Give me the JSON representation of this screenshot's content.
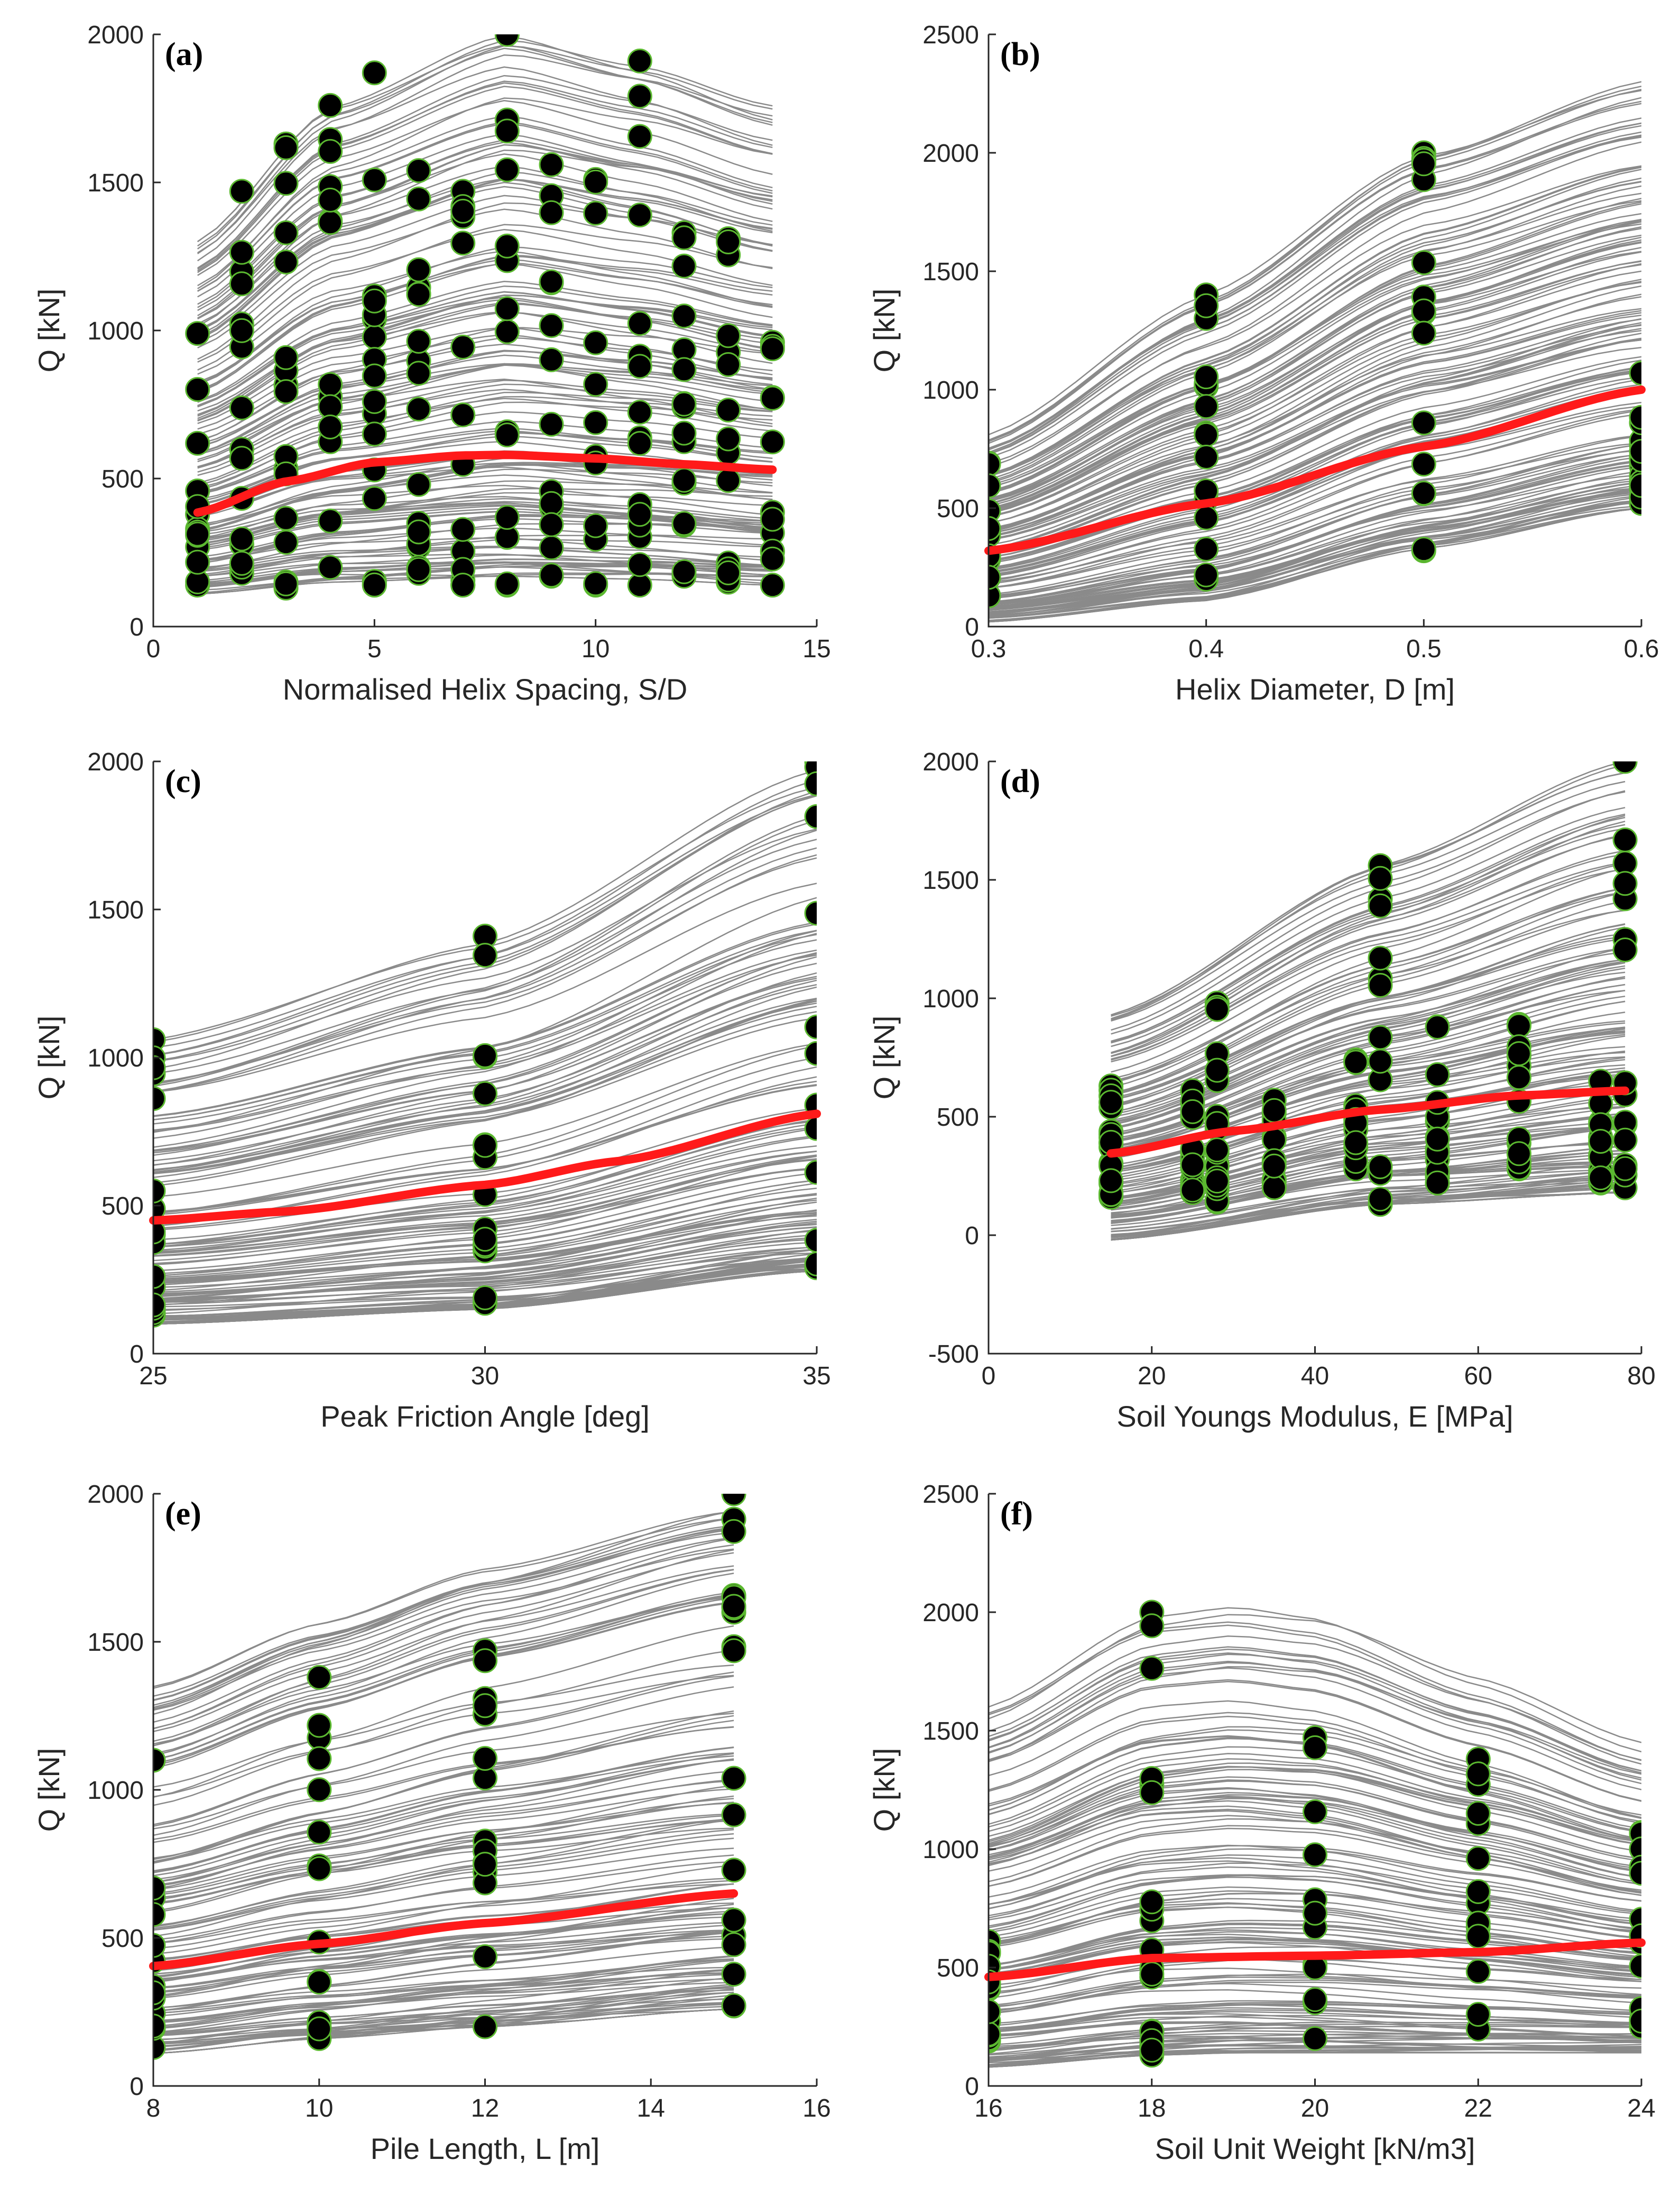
{
  "colors": {
    "curve": "#8a8a8a",
    "mean": "#ff1a1a",
    "point_fill": "#000000",
    "point_edge": "#5bb830"
  },
  "chart_data": [
    {
      "id": "a",
      "type": "scatter",
      "panel_label": "(a)",
      "xlabel": "Normalised Helix Spacing, S/D",
      "ylabel": "Q [kN]",
      "xlim": [
        0,
        15
      ],
      "ylim": [
        0,
        2000
      ],
      "xticks": [
        0,
        5,
        10,
        15
      ],
      "xtick_labels": [
        "0",
        "5",
        "10",
        "15"
      ],
      "yticks": [
        0,
        500,
        1000,
        1500,
        2000
      ],
      "ytick_labels": [
        "0",
        "500",
        "1000",
        "1500",
        "2000"
      ],
      "x_levels": [
        1,
        2,
        3,
        4,
        5,
        6,
        7,
        8,
        9,
        10,
        11,
        12,
        13,
        14
      ],
      "curve_range": [
        1,
        14
      ],
      "curve_envelope": {
        "x": [
          1,
          4,
          8,
          11,
          14
        ],
        "lower": [
          110,
          150,
          170,
          160,
          140
        ],
        "upper": [
          1300,
          1750,
          2000,
          1900,
          1760
        ]
      },
      "mean_curve": {
        "x": [
          1,
          3,
          5,
          7,
          8,
          10,
          12,
          14
        ],
        "y": [
          385,
          490,
          555,
          578,
          580,
          568,
          548,
          530
        ]
      },
      "points": [
        {
          "x": 1,
          "ymin": 140,
          "ymax": 990
        },
        {
          "x": 2,
          "ymin": 180,
          "ymax": 1470
        },
        {
          "x": 3,
          "ymin": 130,
          "ymax": 1630
        },
        {
          "x": 4,
          "ymin": 200,
          "ymax": 1760
        },
        {
          "x": 5,
          "ymin": 140,
          "ymax": 1870
        },
        {
          "x": 6,
          "ymin": 180,
          "ymax": 1540
        },
        {
          "x": 7,
          "ymin": 140,
          "ymax": 1470
        },
        {
          "x": 8,
          "ymin": 140,
          "ymax": 2000
        },
        {
          "x": 9,
          "ymin": 170,
          "ymax": 1560
        },
        {
          "x": 10,
          "ymin": 140,
          "ymax": 1510
        },
        {
          "x": 11,
          "ymin": 140,
          "ymax": 1910
        },
        {
          "x": 12,
          "ymin": 170,
          "ymax": 1330
        },
        {
          "x": 13,
          "ymin": 150,
          "ymax": 1310
        },
        {
          "x": 14,
          "ymin": 140,
          "ymax": 960
        }
      ]
    },
    {
      "id": "b",
      "type": "scatter",
      "panel_label": "(b)",
      "xlabel": "Helix Diameter, D [m]",
      "ylabel": "Q [kN]",
      "xlim": [
        0.3,
        0.6
      ],
      "ylim": [
        0,
        2500
      ],
      "xticks": [
        0.3,
        0.4,
        0.5,
        0.6
      ],
      "xtick_labels": [
        "0.3",
        "0.4",
        "0.5",
        "0.6"
      ],
      "yticks": [
        0,
        500,
        1000,
        1500,
        2000,
        2500
      ],
      "ytick_labels": [
        "0",
        "500",
        "1000",
        "1500",
        "2000",
        "2500"
      ],
      "x_levels": [
        0.3,
        0.4,
        0.5,
        0.6
      ],
      "curve_range": [
        0.3,
        0.6
      ],
      "curve_envelope": {
        "x": [
          0.3,
          0.4,
          0.5,
          0.6
        ],
        "lower": [
          20,
          110,
          330,
          500
        ],
        "upper": [
          810,
          1400,
          2000,
          2300
        ]
      },
      "mean_curve": {
        "x": [
          0.3,
          0.4,
          0.5,
          0.6
        ],
        "y": [
          320,
          520,
          760,
          1000
        ]
      },
      "points": [
        {
          "x": 0.3,
          "ymin": 130,
          "ymax": 690
        },
        {
          "x": 0.4,
          "ymin": 200,
          "ymax": 1400
        },
        {
          "x": 0.5,
          "ymin": 320,
          "ymax": 2000
        },
        {
          "x": 0.6,
          "ymin": 520,
          "ymax": 1070
        }
      ]
    },
    {
      "id": "c",
      "type": "scatter",
      "panel_label": "(c)",
      "xlabel": "Peak Friction Angle [deg]",
      "ylabel": "Q [kN]",
      "xlim": [
        25,
        35
      ],
      "ylim": [
        0,
        2000
      ],
      "xticks": [
        25,
        30,
        35
      ],
      "xtick_labels": [
        "25",
        "30",
        "35"
      ],
      "yticks": [
        0,
        500,
        1000,
        1500,
        2000
      ],
      "ytick_labels": [
        "0",
        "500",
        "1000",
        "1500",
        "2000"
      ],
      "x_levels": [
        25,
        30,
        35
      ],
      "curve_range": [
        25,
        35
      ],
      "curve_envelope": {
        "x": [
          25,
          30,
          35
        ],
        "lower": [
          100,
          150,
          280
        ],
        "upper": [
          1060,
          1400,
          2000
        ]
      },
      "mean_curve": {
        "x": [
          25,
          27,
          30,
          32,
          35
        ],
        "y": [
          450,
          480,
          570,
          650,
          810
        ]
      },
      "points": [
        {
          "x": 25,
          "ymin": 130,
          "ymax": 1060
        },
        {
          "x": 30,
          "ymin": 170,
          "ymax": 1410
        },
        {
          "x": 35,
          "ymin": 290,
          "ymax": 2000
        }
      ]
    },
    {
      "id": "d",
      "type": "scatter",
      "panel_label": "(d)",
      "xlabel": "Soil Youngs Modulus, E [MPa]",
      "ylabel": "Q [kN]",
      "xlim": [
        0,
        80
      ],
      "ylim": [
        -500,
        2000
      ],
      "xticks": [
        0,
        20,
        40,
        60,
        80
      ],
      "xtick_labels": [
        "0",
        "20",
        "40",
        "60",
        "80"
      ],
      "yticks": [
        -500,
        0,
        500,
        1000,
        1500,
        2000
      ],
      "ytick_labels": [
        "-500",
        "0",
        "500",
        "1000",
        "1500",
        "2000"
      ],
      "x_levels": [
        15,
        25,
        28,
        35,
        45,
        48,
        55,
        65,
        75,
        78
      ],
      "curve_range": [
        15,
        78
      ],
      "curve_envelope": {
        "x": [
          15,
          48,
          78
        ],
        "lower": [
          -20,
          130,
          180
        ],
        "upper": [
          930,
          1560,
          2000
        ]
      },
      "mean_curve": {
        "x": [
          15,
          30,
          48,
          65,
          78
        ],
        "y": [
          345,
          440,
          530,
          590,
          610
        ]
      },
      "points": [
        {
          "x": 15,
          "ymin": 160,
          "ymax": 630
        },
        {
          "x": 25,
          "ymin": 180,
          "ymax": 610
        },
        {
          "x": 28,
          "ymin": 140,
          "ymax": 980
        },
        {
          "x": 35,
          "ymin": 200,
          "ymax": 570
        },
        {
          "x": 45,
          "ymin": 280,
          "ymax": 740
        },
        {
          "x": 48,
          "ymin": 130,
          "ymax": 1560
        },
        {
          "x": 55,
          "ymin": 220,
          "ymax": 880
        },
        {
          "x": 65,
          "ymin": 280,
          "ymax": 890
        },
        {
          "x": 75,
          "ymin": 220,
          "ymax": 650
        },
        {
          "x": 78,
          "ymin": 200,
          "ymax": 2000
        }
      ]
    },
    {
      "id": "e",
      "type": "scatter",
      "panel_label": "(e)",
      "xlabel": "Pile Length, L [m]",
      "ylabel": "Q [kN]",
      "xlim": [
        8,
        16
      ],
      "ylim": [
        0,
        2000
      ],
      "xticks": [
        8,
        10,
        12,
        14,
        16
      ],
      "xtick_labels": [
        "8",
        "10",
        "12",
        "14",
        "16"
      ],
      "yticks": [
        0,
        500,
        1000,
        1500,
        2000
      ],
      "ytick_labels": [
        "0",
        "500",
        "1000",
        "1500",
        "2000"
      ],
      "x_levels": [
        8,
        10,
        12,
        15
      ],
      "curve_range": [
        8,
        15
      ],
      "curve_envelope": {
        "x": [
          8,
          10,
          12,
          15
        ],
        "lower": [
          110,
          160,
          200,
          260
        ],
        "upper": [
          1350,
          1580,
          1780,
          2000
        ]
      },
      "mean_curve": {
        "x": [
          8,
          10,
          12,
          15
        ],
        "y": [
          405,
          480,
          550,
          650
        ]
      },
      "points": [
        {
          "x": 8,
          "ymin": 130,
          "ymax": 1100
        },
        {
          "x": 10,
          "ymin": 160,
          "ymax": 1380
        },
        {
          "x": 12,
          "ymin": 200,
          "ymax": 1470
        },
        {
          "x": 15,
          "ymin": 270,
          "ymax": 2000
        }
      ]
    },
    {
      "id": "f",
      "type": "scatter",
      "panel_label": "(f)",
      "xlabel": "Soil Unit Weight [kN/m3]",
      "ylabel": "Q [kN]",
      "xlim": [
        16,
        24
      ],
      "ylim": [
        0,
        2500
      ],
      "xticks": [
        16,
        18,
        20,
        22,
        24
      ],
      "xtick_labels": [
        "16",
        "18",
        "20",
        "22",
        "24"
      ],
      "yticks": [
        0,
        500,
        1000,
        1500,
        2000,
        2500
      ],
      "ytick_labels": [
        "0",
        "500",
        "1000",
        "1500",
        "2000",
        "2500"
      ],
      "x_levels": [
        16,
        18,
        20,
        22,
        24
      ],
      "curve_range": [
        16,
        24
      ],
      "curve_envelope": {
        "x": [
          16,
          18,
          19,
          20,
          22,
          24
        ],
        "lower": [
          80,
          130,
          140,
          140,
          140,
          140
        ],
        "upper": [
          1600,
          1980,
          2020,
          1980,
          1720,
          1450
        ]
      },
      "mean_curve": {
        "x": [
          16,
          18,
          20,
          22,
          24
        ],
        "y": [
          460,
          540,
          550,
          565,
          605
        ]
      },
      "points": [
        {
          "x": 16,
          "ymin": 190,
          "ymax": 610
        },
        {
          "x": 18,
          "ymin": 130,
          "ymax": 2000
        },
        {
          "x": 20,
          "ymin": 200,
          "ymax": 1470
        },
        {
          "x": 22,
          "ymin": 240,
          "ymax": 1380
        },
        {
          "x": 24,
          "ymin": 250,
          "ymax": 1070
        }
      ]
    }
  ]
}
